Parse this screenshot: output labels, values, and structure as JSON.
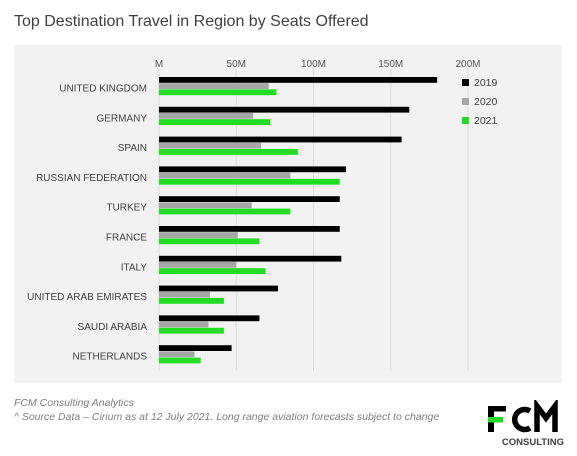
{
  "chart_data": {
    "type": "bar",
    "orientation": "horizontal",
    "title": "Top Destination Travel in Region by Seats Offered",
    "categories": [
      "UNITED KINGDOM",
      "GERMANY",
      "SPAIN",
      "RUSSIAN FEDERATION",
      "TURKEY",
      "FRANCE",
      "ITALY",
      "UNITED ARAB EMIRATES",
      "SAUDI ARABIA",
      "NETHERLANDS"
    ],
    "series": [
      {
        "name": "2019",
        "color": "#000000",
        "values": [
          180,
          162,
          157,
          121,
          117,
          117,
          118,
          77,
          65,
          47
        ]
      },
      {
        "name": "2020",
        "color": "#a6a6a6",
        "values": [
          71,
          61,
          66,
          85,
          60,
          51,
          50,
          33,
          32,
          23
        ]
      },
      {
        "name": "2021",
        "color": "#22dd22",
        "values": [
          76,
          72,
          90,
          117,
          85,
          65,
          69,
          42,
          42,
          27
        ]
      }
    ],
    "xticks": [
      "M",
      "50M",
      "100M",
      "150M",
      "200M"
    ],
    "xlim": [
      0,
      200
    ],
    "legend_position": "right",
    "grid": "vertical"
  },
  "footer": {
    "line1": "FCM Consulting Analytics",
    "line2": "^ Source Data – Cirium as at 12 July 2021. Long range aviation forecasts subject to change"
  },
  "logo": {
    "wordmark": "FCM",
    "subtext": "CONSULTING",
    "accent_color": "#22dd22"
  }
}
